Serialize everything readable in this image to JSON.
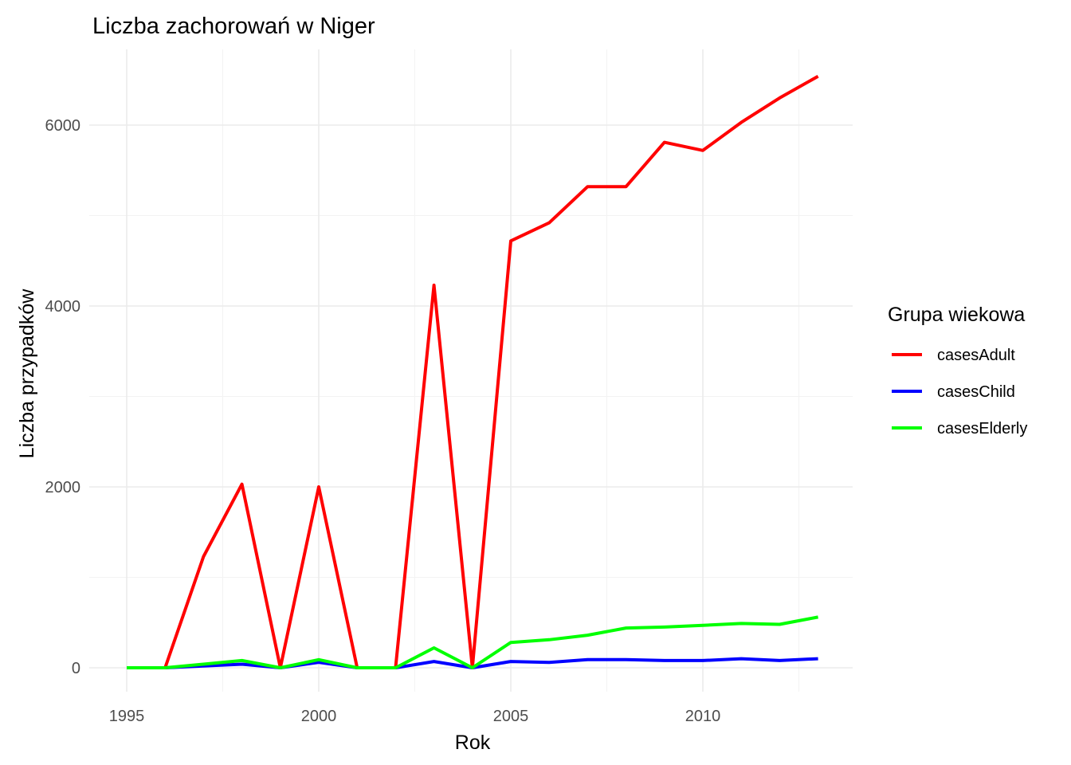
{
  "chart_data": {
    "type": "line",
    "title": "Liczba zachorowań w Niger",
    "xlabel": "Rok",
    "ylabel": "Liczba przypadków",
    "x": [
      1995,
      1996,
      1997,
      1998,
      1999,
      2000,
      2001,
      2002,
      2003,
      2004,
      2005,
      2006,
      2007,
      2008,
      2009,
      2010,
      2011,
      2012,
      2013
    ],
    "x_ticks": [
      "1995",
      "2000",
      "2005",
      "2010"
    ],
    "y_ticks": [
      "0",
      "2000",
      "4000",
      "6000"
    ],
    "xlim": [
      1994.5,
      2013.8
    ],
    "ylim": [
      -300,
      6850
    ],
    "grid": true,
    "legend": {
      "title": "Grupa wiekowa",
      "position": "right"
    },
    "series": [
      {
        "name": "casesAdult",
        "color": "#ff0000",
        "values": [
          0,
          0,
          1230,
          2030,
          0,
          2000,
          0,
          0,
          4230,
          0,
          4720,
          4920,
          5320,
          5320,
          5810,
          5720,
          6030,
          6300,
          6540
        ]
      },
      {
        "name": "casesChild",
        "color": "#0000ff",
        "values": [
          0,
          0,
          20,
          40,
          0,
          60,
          0,
          0,
          70,
          0,
          70,
          60,
          90,
          90,
          80,
          80,
          100,
          80,
          100
        ]
      },
      {
        "name": "casesElderly",
        "color": "#00ff00",
        "values": [
          0,
          0,
          40,
          80,
          0,
          90,
          0,
          0,
          220,
          0,
          280,
          310,
          360,
          440,
          450,
          470,
          490,
          480,
          560
        ]
      }
    ]
  }
}
